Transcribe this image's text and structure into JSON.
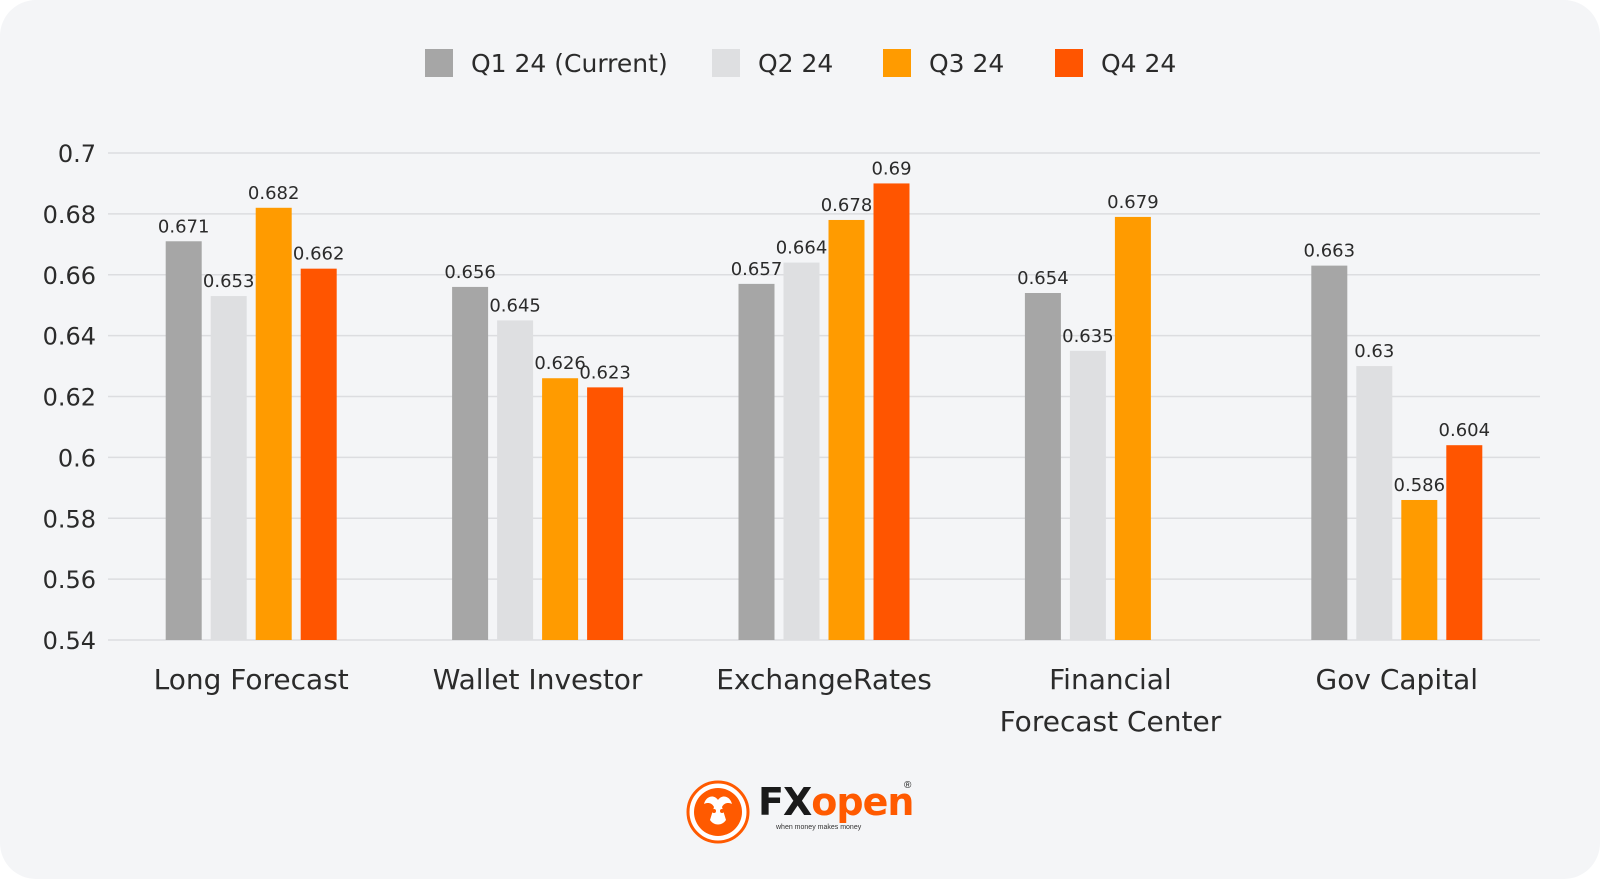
{
  "colors": {
    "background": "#f4f5f7",
    "gridline": "#dcdde0",
    "series": [
      "#a6a6a6",
      "#dedfe1",
      "#ff9b00",
      "#ff5500"
    ],
    "brand_orange": "#ff5a00"
  },
  "chart_data": {
    "type": "bar",
    "title": "",
    "xlabel": "",
    "ylabel": "",
    "ylim": [
      0.54,
      0.7
    ],
    "yticks": [
      "0.54",
      "0.56",
      "0.58",
      "0.6",
      "0.62",
      "0.64",
      "0.66",
      "0.68",
      "0.7"
    ],
    "grid": true,
    "legend_position": "top-center",
    "categories": [
      [
        "Long Forecast"
      ],
      [
        "Wallet Investor"
      ],
      [
        "ExchangeRates"
      ],
      [
        "Financial",
        "Forecast Center"
      ],
      [
        "Gov Capital"
      ]
    ],
    "series": [
      {
        "name": "Q1 24 (Current)",
        "values": [
          0.671,
          0.656,
          0.657,
          0.654,
          0.663
        ]
      },
      {
        "name": "Q2 24",
        "values": [
          0.653,
          0.645,
          0.664,
          0.635,
          0.63
        ]
      },
      {
        "name": "Q3 24",
        "values": [
          0.682,
          0.626,
          0.678,
          0.679,
          0.586
        ]
      },
      {
        "name": "Q4 24",
        "values": [
          0.662,
          0.623,
          0.69,
          null,
          0.604
        ]
      }
    ]
  },
  "logo": {
    "wordmark_fx": "FX",
    "wordmark_open": "open",
    "registered": "®",
    "tagline": "when money makes money",
    "icon": "bull-emblem-icon"
  }
}
